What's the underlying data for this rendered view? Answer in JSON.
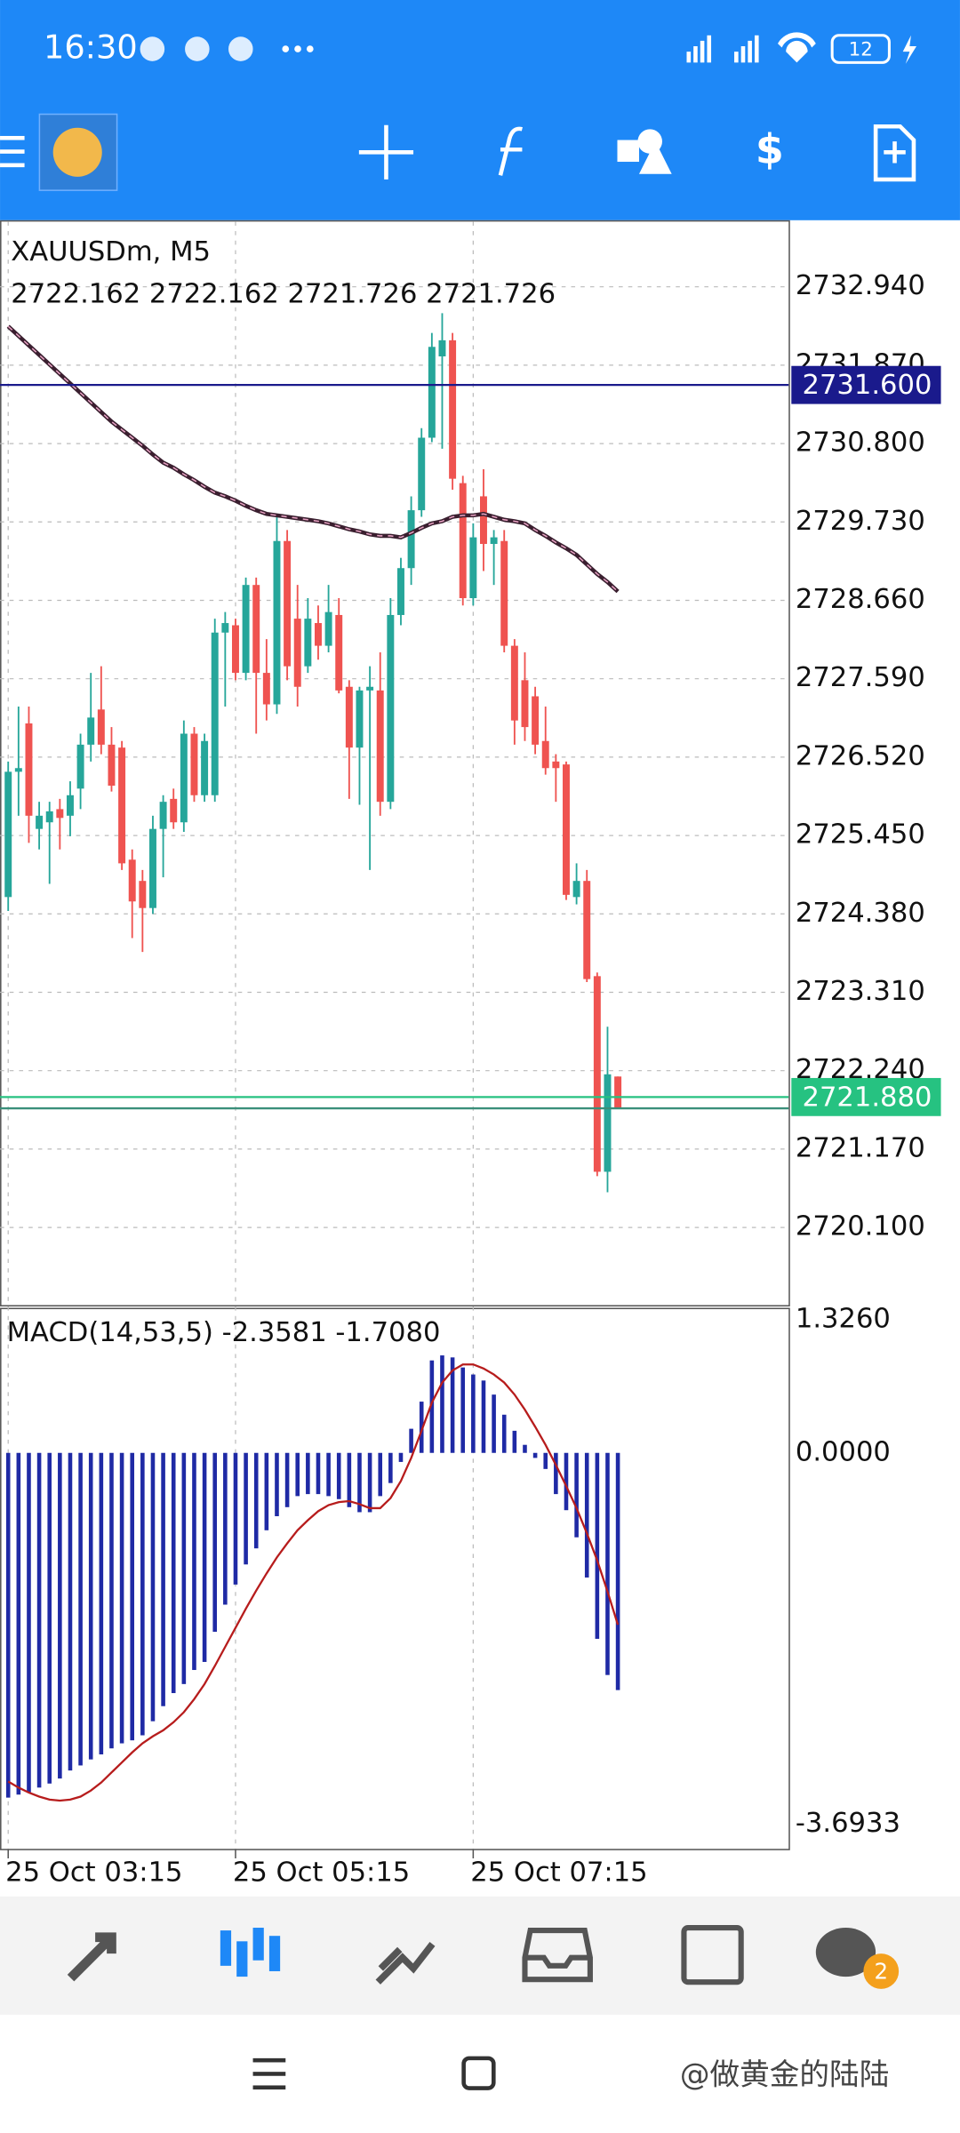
{
  "status_bar": {
    "time": "16:30",
    "battery": "12"
  },
  "chart_data": [
    {
      "type": "candlestick",
      "symbol_label": "XAUUSDm, M5",
      "ohlc_label": "2722.162 2722.162 2721.726 2721.726",
      "up_color": "#26a69a",
      "down_color": "#ef5350",
      "open": [
        2724.61,
        2726.32,
        2726.98,
        2725.54,
        2725.63,
        2725.81,
        2725.72,
        2726.09,
        2726.69,
        2727.17,
        2726.69,
        2726.65,
        2725.12,
        2724.83,
        2724.46,
        2725.54,
        2725.95,
        2725.63,
        2726.84,
        2726.0,
        2726.0,
        2728.22,
        2728.32,
        2727.67,
        2728.87,
        2727.67,
        2727.24,
        2729.47,
        2728.41,
        2727.76,
        2728.35,
        2728.04,
        2728.46,
        2727.48,
        2726.65,
        2727.43,
        2727.43,
        2725.91,
        2728.46,
        2729.1,
        2729.89,
        2730.88,
        2731.99,
        2732.21,
        2730.26,
        2728.69,
        2730.08,
        2729.43,
        2729.47,
        2728.04,
        2727.57,
        2727.35,
        2726.74,
        2726.46,
        2726.42,
        2724.61,
        2724.83,
        2723.53,
        2720.86,
        2722.16
      ],
      "high": [
        2726.46,
        2727.21,
        2727.21,
        2725.91,
        2725.91,
        2725.95,
        2726.19,
        2726.84,
        2727.67,
        2727.76,
        2726.93,
        2726.74,
        2725.26,
        2724.98,
        2725.72,
        2726.0,
        2726.09,
        2727.02,
        2726.93,
        2726.84,
        2728.41,
        2728.5,
        2728.41,
        2728.97,
        2728.97,
        2728.13,
        2729.84,
        2729.62,
        2728.87,
        2728.69,
        2728.59,
        2728.87,
        2728.69,
        2727.57,
        2727.48,
        2727.76,
        2727.95,
        2728.69,
        2729.24,
        2730.08,
        2731.01,
        2732.31,
        2732.58,
        2732.31,
        2730.36,
        2729.71,
        2730.45,
        2729.62,
        2729.62,
        2728.13,
        2727.95,
        2727.48,
        2727.21,
        2726.56,
        2726.46,
        2725.07,
        2724.98,
        2723.58,
        2722.84,
        2722.16
      ],
      "low": [
        2724.42,
        2725.72,
        2725.35,
        2725.26,
        2724.79,
        2725.26,
        2725.44,
        2725.81,
        2726.46,
        2726.56,
        2726.05,
        2724.98,
        2724.05,
        2723.86,
        2724.38,
        2724.88,
        2725.54,
        2725.5,
        2725.91,
        2725.91,
        2725.91,
        2727.21,
        2727.57,
        2727.57,
        2726.84,
        2727.02,
        2727.11,
        2727.57,
        2727.21,
        2727.67,
        2727.85,
        2727.95,
        2727.39,
        2725.95,
        2725.87,
        2724.98,
        2725.72,
        2725.81,
        2728.32,
        2728.87,
        2729.8,
        2730.82,
        2730.73,
        2730.17,
        2728.59,
        2728.59,
        2729.06,
        2728.87,
        2727.95,
        2726.69,
        2726.74,
        2726.56,
        2726.28,
        2725.91,
        2724.57,
        2724.51,
        2723.45,
        2720.8,
        2720.58,
        2721.73
      ],
      "close": [
        2726.32,
        2726.37,
        2725.72,
        2725.72,
        2725.78,
        2725.69,
        2726.0,
        2726.69,
        2727.06,
        2726.69,
        2726.13,
        2725.07,
        2724.55,
        2724.46,
        2725.54,
        2725.91,
        2725.63,
        2726.84,
        2726.0,
        2726.74,
        2728.22,
        2728.35,
        2727.67,
        2728.87,
        2727.67,
        2727.24,
        2729.47,
        2727.76,
        2727.48,
        2728.41,
        2728.04,
        2728.5,
        2727.43,
        2726.65,
        2727.43,
        2727.48,
        2725.91,
        2728.46,
        2729.1,
        2729.89,
        2730.88,
        2732.12,
        2732.21,
        2730.32,
        2728.69,
        2729.52,
        2729.43,
        2729.52,
        2728.04,
        2727.02,
        2726.93,
        2726.69,
        2726.37,
        2726.37,
        2724.64,
        2724.83,
        2723.49,
        2720.86,
        2722.19,
        2721.73
      ],
      "ma": {
        "color": "#3a1f2f",
        "values": [
          2732.4,
          2732.27,
          2732.14,
          2732.01,
          2731.88,
          2731.75,
          2731.62,
          2731.49,
          2731.36,
          2731.23,
          2731.1,
          2730.99,
          2730.88,
          2730.77,
          2730.65,
          2730.54,
          2730.47,
          2730.38,
          2730.3,
          2730.21,
          2730.13,
          2730.08,
          2730.02,
          2729.95,
          2729.89,
          2729.84,
          2729.82,
          2729.8,
          2729.78,
          2729.76,
          2729.74,
          2729.71,
          2729.67,
          2729.63,
          2729.6,
          2729.56,
          2729.54,
          2729.54,
          2729.52,
          2729.58,
          2729.65,
          2729.71,
          2729.74,
          2729.8,
          2729.82,
          2729.82,
          2729.84,
          2729.8,
          2729.76,
          2729.74,
          2729.71,
          2729.62,
          2729.54,
          2729.45,
          2729.37,
          2729.28,
          2729.15,
          2729.02,
          2728.91,
          2728.78
        ]
      },
      "price_lines": [
        {
          "value": 2731.6,
          "label": "2731.600",
          "color": "#1a1a8c"
        },
        {
          "value": 2721.88,
          "label": "2721.880",
          "color": "#26c281"
        },
        {
          "value": 2721.726,
          "color": "#3b8f7a"
        }
      ],
      "ylim": [
        2719.04,
        2733.83
      ],
      "yticks": [
        {
          "value": 2732.94,
          "label": "2732.940"
        },
        {
          "value": 2731.87,
          "label": "2731.870"
        },
        {
          "value": 2730.8,
          "label": "2730.800"
        },
        {
          "value": 2729.73,
          "label": "2729.730"
        },
        {
          "value": 2728.66,
          "label": "2728.660"
        },
        {
          "value": 2727.59,
          "label": "2727.590"
        },
        {
          "value": 2726.52,
          "label": "2726.520"
        },
        {
          "value": 2725.45,
          "label": "2725.450"
        },
        {
          "value": 2724.38,
          "label": "2724.380"
        },
        {
          "value": 2723.31,
          "label": "2723.310"
        },
        {
          "value": 2722.24,
          "label": "2722.240"
        },
        {
          "value": 2721.17,
          "label": "2721.170"
        },
        {
          "value": 2720.1,
          "label": "2720.100"
        }
      ],
      "xticks": [
        {
          "value": 0,
          "label": "25 Oct 03:15"
        },
        {
          "value": 22,
          "label": "25 Oct 05:15"
        },
        {
          "value": 45,
          "label": "25 Oct 07:15"
        }
      ],
      "grid": true
    },
    {
      "type": "macd",
      "title": "MACD(14,53,5) -2.3581 -1.7080",
      "histogram": {
        "color": "#1f2aa5",
        "values": [
          -3.43,
          -3.4,
          -3.38,
          -3.33,
          -3.29,
          -3.24,
          -3.16,
          -3.11,
          -3.05,
          -3.0,
          -2.94,
          -2.89,
          -2.86,
          -2.81,
          -2.67,
          -2.52,
          -2.39,
          -2.3,
          -2.16,
          -2.08,
          -1.78,
          -1.51,
          -1.31,
          -1.11,
          -0.95,
          -0.77,
          -0.63,
          -0.54,
          -0.43,
          -0.41,
          -0.41,
          -0.43,
          -0.46,
          -0.54,
          -0.59,
          -0.59,
          -0.43,
          -0.3,
          -0.09,
          0.24,
          0.51,
          0.92,
          0.97,
          0.95,
          0.85,
          0.78,
          0.72,
          0.58,
          0.38,
          0.22,
          0.08,
          -0.05,
          -0.16,
          -0.41,
          -0.57,
          -0.84,
          -1.24,
          -1.85,
          -2.21,
          -2.36
        ]
      },
      "signal": {
        "color": "#b71c1c",
        "values": [
          -3.27,
          -3.33,
          -3.38,
          -3.42,
          -3.45,
          -3.46,
          -3.45,
          -3.42,
          -3.36,
          -3.28,
          -3.18,
          -3.08,
          -2.98,
          -2.89,
          -2.82,
          -2.76,
          -2.68,
          -2.58,
          -2.45,
          -2.3,
          -2.12,
          -1.93,
          -1.74,
          -1.55,
          -1.37,
          -1.2,
          -1.04,
          -0.9,
          -0.77,
          -0.67,
          -0.58,
          -0.52,
          -0.49,
          -0.48,
          -0.51,
          -0.55,
          -0.55,
          -0.45,
          -0.28,
          -0.05,
          0.22,
          0.5,
          0.7,
          0.82,
          0.88,
          0.88,
          0.84,
          0.78,
          0.7,
          0.58,
          0.43,
          0.26,
          0.08,
          -0.12,
          -0.33,
          -0.55,
          -0.8,
          -1.07,
          -1.38,
          -1.71
        ]
      },
      "ylim": [
        -3.94,
        1.43
      ],
      "yticks": [
        {
          "value": 1.326,
          "label": "1.3260"
        },
        {
          "value": 0,
          "label": "0.0000"
        },
        {
          "value": -3.6933,
          "label": "-3.6933"
        }
      ]
    }
  ],
  "bottom_nav": {
    "badge": "2"
  },
  "watermark": "@做黄金的陆陆"
}
